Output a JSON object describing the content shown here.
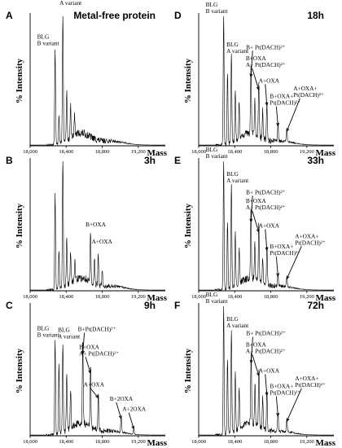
{
  "chart_data": [
    {
      "type": "line",
      "panel": "A",
      "title": "Metal-free protein",
      "xlabel": "Mass",
      "ylabel": "% Intensity",
      "xlim": [
        18000,
        19500
      ],
      "ylim": [
        0,
        100
      ],
      "xticks": [
        18000,
        18400,
        18800,
        19200
      ],
      "tick_labels": [
        "18,000",
        "18,400",
        "18,800",
        "19,200"
      ],
      "peaks": [
        {
          "mass": 18277,
          "intensity": 74
        },
        {
          "mass": 18320,
          "intensity": 23
        },
        {
          "mass": 18363,
          "intensity": 100
        },
        {
          "mass": 18406,
          "intensity": 37
        },
        {
          "mass": 18449,
          "intensity": 25
        },
        {
          "mass": 18492,
          "intensity": 16
        }
      ],
      "annotations": [
        {
          "label": "BLG\nB variant",
          "mass": 18277,
          "intensity": 74
        },
        {
          "label": "BLG\nA variant",
          "mass": 18363,
          "intensity": 100
        }
      ]
    },
    {
      "type": "line",
      "panel": "B",
      "title": "3h",
      "xlabel": "Mass",
      "ylabel": "% Intensity",
      "xlim": [
        18000,
        19500
      ],
      "ylim": [
        0,
        100
      ],
      "xticks": [
        18000,
        18400,
        18800,
        19200
      ],
      "tick_labels": [
        "18,000",
        "18,400",
        "18,800",
        "19,200"
      ],
      "peaks": [
        {
          "mass": 18277,
          "intensity": 74
        },
        {
          "mass": 18320,
          "intensity": 30
        },
        {
          "mass": 18363,
          "intensity": 100
        },
        {
          "mass": 18406,
          "intensity": 36
        },
        {
          "mass": 18449,
          "intensity": 24
        },
        {
          "mass": 18497,
          "intensity": 14
        },
        {
          "mass": 18670,
          "intensity": 37
        },
        {
          "mass": 18714,
          "intensity": 18
        },
        {
          "mass": 18756,
          "intensity": 24
        },
        {
          "mass": 18800,
          "intensity": 12
        }
      ],
      "annotations": [
        {
          "label": "B+OXA",
          "mass": 18670,
          "intensity": 37
        },
        {
          "label": "A+OXA",
          "mass": 18756,
          "intensity": 24
        }
      ]
    },
    {
      "type": "line",
      "panel": "C",
      "title": "9h",
      "xlabel": "Mass",
      "ylabel": "% Intensity",
      "xlim": [
        18000,
        19500
      ],
      "ylim": [
        0,
        100
      ],
      "xticks": [
        18000,
        18400,
        18800,
        19200
      ],
      "tick_labels": [
        "18,000",
        "18,400",
        "18,800",
        "19,200"
      ],
      "peaks": [
        {
          "mass": 18277,
          "intensity": 74
        },
        {
          "mass": 18320,
          "intensity": 55
        },
        {
          "mass": 18363,
          "intensity": 70
        },
        {
          "mass": 18406,
          "intensity": 44
        },
        {
          "mass": 18449,
          "intensity": 30
        },
        {
          "mass": 18584,
          "intensity": 62
        },
        {
          "mass": 18670,
          "intensity": 47
        },
        {
          "mass": 18757,
          "intensity": 28
        },
        {
          "mass": 19010,
          "intensity": 12
        },
        {
          "mass": 19150,
          "intensity": 4
        }
      ],
      "annotations": [
        {
          "label": "BLG\nB variant",
          "mass": 18277,
          "intensity": 74
        },
        {
          "label": "BLG\nA variant",
          "mass": 18363,
          "intensity": 70
        },
        {
          "label": "B+Pt(DACH)²⁺",
          "mass": 18584,
          "intensity": 62
        },
        {
          "label": "B+OXA\nA+ Pt(DACH)²⁺",
          "mass": 18670,
          "intensity": 47
        },
        {
          "label": "A+OXA",
          "mass": 18757,
          "intensity": 28
        },
        {
          "label": "B+2OXA",
          "mass": 19010,
          "intensity": 12
        },
        {
          "label": "A+2OXA",
          "mass": 19150,
          "intensity": 4
        }
      ]
    },
    {
      "type": "line",
      "panel": "D",
      "title": "18h",
      "xlabel": "Mass",
      "ylabel": "% Intensity",
      "xlim": [
        18000,
        19500
      ],
      "ylim": [
        0,
        100
      ],
      "xticks": [
        18000,
        18400,
        18800,
        19200
      ],
      "tick_labels": [
        "18,000",
        "18,400",
        "18,800",
        "19,200"
      ],
      "peaks": [
        {
          "mass": 18277,
          "intensity": 100
        },
        {
          "mass": 18320,
          "intensity": 55
        },
        {
          "mass": 18363,
          "intensity": 68
        },
        {
          "mass": 18406,
          "intensity": 40
        },
        {
          "mass": 18449,
          "intensity": 28
        },
        {
          "mass": 18580,
          "intensity": 52
        },
        {
          "mass": 18623,
          "intensity": 28
        },
        {
          "mass": 18667,
          "intensity": 42
        },
        {
          "mass": 18710,
          "intensity": 22
        },
        {
          "mass": 18757,
          "intensity": 30
        },
        {
          "mass": 18880,
          "intensity": 14
        },
        {
          "mass": 18978,
          "intensity": 10
        }
      ],
      "annotations": [
        {
          "label": "BLG\nB variant",
          "mass": 18277,
          "intensity": 100
        },
        {
          "label": "BLG\nA variant",
          "mass": 18363,
          "intensity": 68
        },
        {
          "label": "B+ Pt(DACH)²⁺",
          "mass": 18580,
          "intensity": 52
        },
        {
          "label": "B+OXA\nA+ Pt(DACH)²⁺",
          "mass": 18667,
          "intensity": 42
        },
        {
          "label": "A+OXA",
          "mass": 18757,
          "intensity": 30
        },
        {
          "label": "B+OXA+\nPt(DACH)²⁺",
          "mass": 18880,
          "intensity": 14
        },
        {
          "label": "A+OXA+\nPt(DACH)²⁺",
          "mass": 18978,
          "intensity": 10
        }
      ]
    },
    {
      "type": "line",
      "panel": "E",
      "title": "33h",
      "xlabel": "Mass",
      "ylabel": "% Intensity",
      "xlim": [
        18000,
        19500
      ],
      "ylim": [
        0,
        100
      ],
      "xticks": [
        18000,
        18400,
        18800,
        19200
      ],
      "tick_labels": [
        "18,000",
        "18,400",
        "18,800",
        "19,200"
      ],
      "peaks": [
        {
          "mass": 18277,
          "intensity": 100
        },
        {
          "mass": 18320,
          "intensity": 52
        },
        {
          "mass": 18363,
          "intensity": 80
        },
        {
          "mass": 18406,
          "intensity": 40
        },
        {
          "mass": 18449,
          "intensity": 27
        },
        {
          "mass": 18580,
          "intensity": 52
        },
        {
          "mass": 18623,
          "intensity": 28
        },
        {
          "mass": 18667,
          "intensity": 44
        },
        {
          "mass": 18710,
          "intensity": 20
        },
        {
          "mass": 18757,
          "intensity": 30
        },
        {
          "mass": 18880,
          "intensity": 10
        },
        {
          "mass": 18978,
          "intensity": 8
        }
      ],
      "annotations": [
        {
          "label": "BLG\nB variant",
          "mass": 18277,
          "intensity": 100
        },
        {
          "label": "BLG\nA variant",
          "mass": 18363,
          "intensity": 80
        },
        {
          "label": "B+ Pt(DACH)²⁺",
          "mass": 18580,
          "intensity": 52
        },
        {
          "label": "B+OXA\nA+ Pt(DACH)²⁺",
          "mass": 18667,
          "intensity": 44
        },
        {
          "label": "A+OXA",
          "mass": 18757,
          "intensity": 30
        },
        {
          "label": "B+OXA+\nPt(DACH)²⁺",
          "mass": 18880,
          "intensity": 10
        },
        {
          "label": "A+OXA+\nPt(DACH)²⁺",
          "mass": 18978,
          "intensity": 8
        }
      ]
    },
    {
      "type": "line",
      "panel": "F",
      "title": "72h",
      "xlabel": "Mass",
      "ylabel": "% Intensity",
      "xlim": [
        18000,
        19500
      ],
      "ylim": [
        0,
        100
      ],
      "xticks": [
        18000,
        18400,
        18800,
        19200
      ],
      "tick_labels": [
        "18,000",
        "18,400",
        "18,800",
        "19,200"
      ],
      "peaks": [
        {
          "mass": 18277,
          "intensity": 100
        },
        {
          "mass": 18320,
          "intensity": 58
        },
        {
          "mass": 18363,
          "intensity": 80
        },
        {
          "mass": 18406,
          "intensity": 45
        },
        {
          "mass": 18449,
          "intensity": 30
        },
        {
          "mass": 18582,
          "intensity": 55
        },
        {
          "mass": 18625,
          "intensity": 30
        },
        {
          "mass": 18668,
          "intensity": 45
        },
        {
          "mass": 18711,
          "intensity": 24
        },
        {
          "mass": 18757,
          "intensity": 30
        },
        {
          "mass": 18880,
          "intensity": 14
        },
        {
          "mass": 18978,
          "intensity": 10
        }
      ],
      "annotations": [
        {
          "label": "BLG\nB variant",
          "mass": 18277,
          "intensity": 100
        },
        {
          "label": "BLG\nA variant",
          "mass": 18363,
          "intensity": 80
        },
        {
          "label": "B+ Pt(DACH)²⁺",
          "mass": 18582,
          "intensity": 55
        },
        {
          "label": "B+OXA\nA+ Pt(DACH)²⁺",
          "mass": 18668,
          "intensity": 45
        },
        {
          "label": "A+OXA",
          "mass": 18757,
          "intensity": 30
        },
        {
          "label": "B+OXA+\nPt(DACH)²⁺",
          "mass": 18880,
          "intensity": 14
        },
        {
          "label": "A+OXA+\nPt(DACH)²⁺",
          "mass": 18978,
          "intensity": 10
        }
      ]
    }
  ]
}
